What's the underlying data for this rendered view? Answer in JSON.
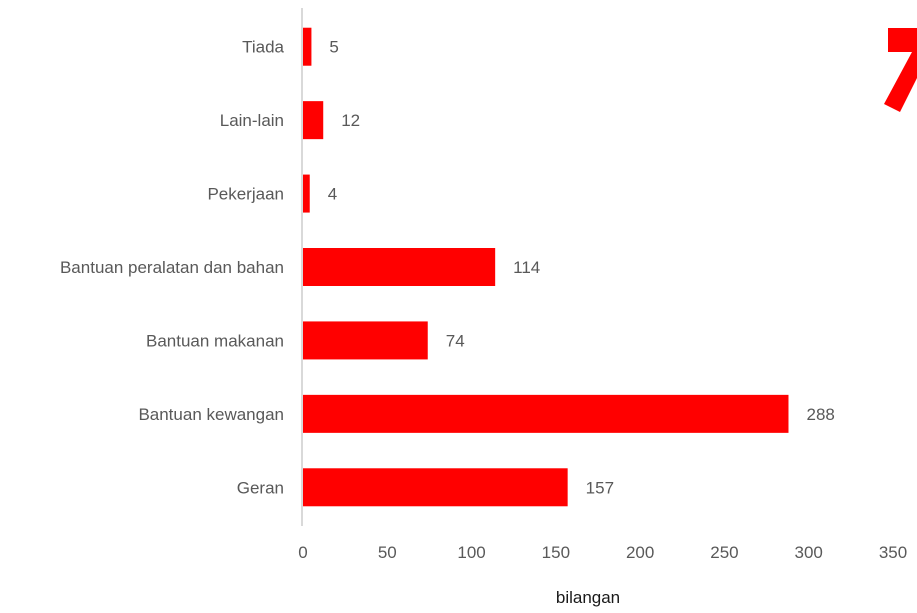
{
  "chart_data": {
    "type": "bar",
    "orientation": "horizontal",
    "categories": [
      "Tiada",
      "Lain-lain",
      "Pekerjaan",
      "Bantuan peralatan dan bahan",
      "Bantuan makanan",
      "Bantuan kewangan",
      "Geran"
    ],
    "values": [
      5,
      12,
      4,
      114,
      74,
      288,
      157
    ],
    "data_labels": [
      "5",
      "12",
      "4",
      "114",
      "74",
      "288",
      "157"
    ],
    "xlabel": "bilangan",
    "ylabel": "",
    "xlim": [
      0,
      350
    ],
    "xticks": [
      0,
      50,
      100,
      150,
      200,
      250,
      300,
      350
    ],
    "xtick_labels": [
      "0",
      "50",
      "100",
      "150",
      "200",
      "250",
      "300",
      "350"
    ],
    "grid": false,
    "legend": "none",
    "bar_color": "#ff0000",
    "axis_color": "#d9d9d9",
    "corner_mark_text": "7"
  }
}
